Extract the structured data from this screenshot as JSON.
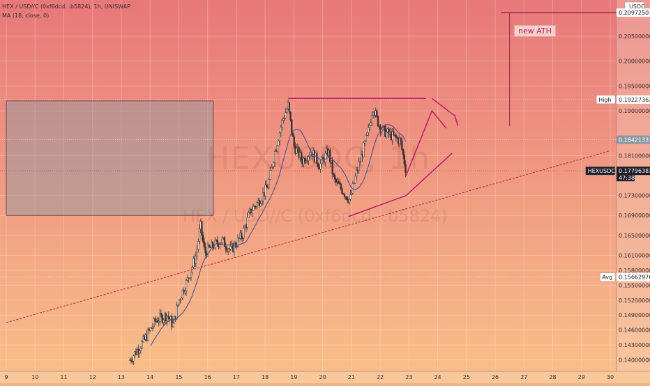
{
  "header": {
    "pair_line": "HEX / USD//C (0xf6dcd...b5824), 1h, UNISWAP",
    "ma_line": "MA (18, close, 0)"
  },
  "watermark": {
    "symbol": "HEXUSDC, 1h",
    "source": "HEX / USD//C (0xf6dcd...b5824)"
  },
  "annotation": {
    "text": "new ATH"
  },
  "price_axis": {
    "currency": "USDC",
    "ticks": [
      "0.2050000000",
      "0.2000000000",
      "0.1950000000",
      "0.1900000000",
      "0.1810000000",
      "0.1730000000",
      "0.1690000000",
      "0.1650000000",
      "0.1610000000",
      "0.1580000000",
      "0.1550000000",
      "0.1520000000",
      "0.1490000000",
      "0.1460000000",
      "0.1430000000",
      "0.1400000000"
    ],
    "labels": {
      "ath": {
        "value": "0.2097250167"
      },
      "high": {
        "tag": "High",
        "value": "0.1922736296"
      },
      "mid": {
        "value": "0.1842133365"
      },
      "last": {
        "tag": "HEXUSDC",
        "value": "0.1779638386",
        "countdown": "47:38"
      },
      "avg": {
        "tag": "Avg",
        "value": "0.1566297613"
      }
    }
  },
  "colors": {
    "bg_top": "#e8787a",
    "bg_bottom": "#f9c08a",
    "candle": "#3a2f2f",
    "ma": "#4f4f8c",
    "drawing": "#c0186a",
    "box": "#8a9aa3",
    "grid": "#ffffff"
  },
  "chart_data": {
    "type": "candlestick",
    "x_ticks": [
      "9",
      "10",
      "11",
      "12",
      "13",
      "14",
      "15",
      "16",
      "17",
      "18",
      "19",
      "20",
      "21",
      "22",
      "23",
      "24",
      "25",
      "26",
      "27",
      "28",
      "29",
      "30"
    ],
    "ylim": [
      0.1384,
      0.2117
    ],
    "xlim": [
      9.0,
      30.0
    ],
    "close_path": [
      [
        13.3,
        0.14
      ],
      [
        13.8,
        0.144
      ],
      [
        14.2,
        0.148
      ],
      [
        14.6,
        0.149
      ],
      [
        14.8,
        0.147
      ],
      [
        15.0,
        0.152
      ],
      [
        15.3,
        0.156
      ],
      [
        15.6,
        0.161
      ],
      [
        15.75,
        0.167
      ],
      [
        15.9,
        0.1615
      ],
      [
        16.2,
        0.163
      ],
      [
        16.5,
        0.164
      ],
      [
        16.8,
        0.162
      ],
      [
        17.2,
        0.165
      ],
      [
        17.5,
        0.17
      ],
      [
        17.8,
        0.172
      ],
      [
        18.1,
        0.175
      ],
      [
        18.35,
        0.182
      ],
      [
        18.6,
        0.188
      ],
      [
        18.8,
        0.191
      ],
      [
        19.0,
        0.183
      ],
      [
        19.3,
        0.18
      ],
      [
        19.6,
        0.182
      ],
      [
        19.9,
        0.179
      ],
      [
        20.2,
        0.182
      ],
      [
        20.4,
        0.176
      ],
      [
        20.7,
        0.174
      ],
      [
        20.95,
        0.172
      ],
      [
        21.15,
        0.177
      ],
      [
        21.4,
        0.182
      ],
      [
        21.6,
        0.186
      ],
      [
        21.75,
        0.191
      ],
      [
        21.9,
        0.188
      ],
      [
        22.1,
        0.186
      ],
      [
        22.4,
        0.185
      ],
      [
        22.7,
        0.184
      ],
      [
        22.9,
        0.178
      ]
    ],
    "ma": {
      "name": "MA (18, close, 0)"
    },
    "drawings": {
      "zone": {
        "x": [
          9.0,
          16.2
        ],
        "y": [
          0.169,
          0.192
        ]
      },
      "top_line": {
        "x": [
          18.8,
          23.6
        ],
        "y": 0.1925
      },
      "bottom_line": {
        "x": [
          20.9,
          22.9
        ],
        "y": [
          0.1688,
          0.173
        ]
      },
      "trendline": {
        "x": [
          9.0,
          30.0
        ],
        "y": [
          0.1475,
          0.182
        ]
      },
      "ath_line": {
        "x": [
          26.2,
          30.0
        ],
        "y": 0.2097
      },
      "ath_vertical": {
        "x": 26.5,
        "y": [
          0.187,
          0.2097
        ]
      },
      "projection": [
        [
          22.9,
          0.177
        ],
        [
          23.8,
          0.19
        ],
        [
          24.3,
          0.1865
        ]
      ],
      "lower_channel": [
        [
          22.9,
          0.173
        ],
        [
          24.5,
          0.1815
        ]
      ],
      "top_arrow": [
        [
          23.8,
          0.1925
        ],
        [
          24.6,
          0.189
        ],
        [
          24.7,
          0.187
        ]
      ]
    },
    "price_levels": {
      "high": 0.1922736296,
      "mid": 0.1842133365,
      "last": 0.1779638386,
      "avg": 0.1566297613,
      "ath": 0.2097250167
    }
  }
}
